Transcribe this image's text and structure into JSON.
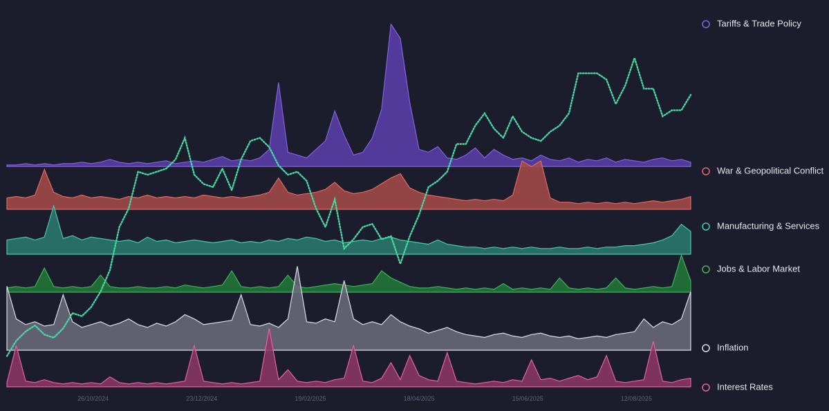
{
  "chart_data": {
    "type": "ridgeline",
    "x": [
      "10/09/2024",
      "15/09/2024",
      "20/09/2024",
      "25/09/2024",
      "30/09/2024",
      "05/10/2024",
      "10/10/2024",
      "15/10/2024",
      "20/10/2024",
      "25/10/2024",
      "30/10/2024",
      "04/11/2024",
      "09/11/2024",
      "14/11/2024",
      "19/11/2024",
      "24/11/2024",
      "29/11/2024",
      "04/12/2024",
      "09/12/2024",
      "14/12/2024",
      "19/12/2024",
      "24/12/2024",
      "29/12/2024",
      "03/01/2025",
      "08/01/2025",
      "13/01/2025",
      "18/01/2025",
      "23/01/2025",
      "28/01/2025",
      "02/02/2025",
      "07/02/2025",
      "12/02/2025",
      "17/02/2025",
      "22/02/2025",
      "27/02/2025",
      "04/03/2025",
      "09/03/2025",
      "14/03/2025",
      "19/03/2025",
      "24/03/2025",
      "29/03/2025",
      "03/04/2025",
      "08/04/2025",
      "13/04/2025",
      "18/04/2025",
      "23/04/2025",
      "28/04/2025",
      "03/05/2025",
      "08/05/2025",
      "13/05/2025",
      "18/05/2025",
      "23/05/2025",
      "28/05/2025",
      "02/06/2025",
      "07/06/2025",
      "12/06/2025",
      "17/06/2025",
      "22/06/2025",
      "27/06/2025",
      "02/07/2025",
      "07/07/2025",
      "12/07/2025",
      "17/07/2025",
      "22/07/2025",
      "27/07/2025",
      "01/08/2025",
      "06/08/2025",
      "11/08/2025",
      "16/08/2025",
      "21/08/2025",
      "26/08/2025",
      "31/08/2025",
      "05/09/2025",
      "10/09/2025"
    ],
    "xticks": [
      "26/10/2024",
      "23/12/2024",
      "19/02/2025",
      "18/04/2025",
      "15/06/2025",
      "12/08/2025"
    ],
    "series": [
      {
        "name": "Tariffs & Trade Policy",
        "color": "#8064dc",
        "values": [
          1,
          1,
          2,
          1,
          2,
          1,
          2,
          2,
          3,
          2,
          3,
          5,
          3,
          2,
          3,
          2,
          3,
          4,
          2,
          3,
          4,
          3,
          5,
          7,
          4,
          5,
          4,
          6,
          12,
          59,
          10,
          8,
          6,
          12,
          18,
          39,
          22,
          8,
          10,
          20,
          40,
          100,
          90,
          45,
          12,
          10,
          14,
          6,
          5,
          8,
          13,
          6,
          12,
          8,
          5,
          6,
          4,
          8,
          5,
          4,
          6,
          3,
          5,
          4,
          6,
          3,
          5,
          4,
          3,
          5,
          6,
          4,
          5,
          3
        ]
      },
      {
        "name": "War & Geopolitical Conflict",
        "color": "#e06a62",
        "values": [
          8,
          9,
          8,
          10,
          28,
          12,
          9,
          8,
          10,
          8,
          9,
          8,
          7,
          9,
          8,
          10,
          8,
          9,
          8,
          9,
          8,
          10,
          9,
          8,
          9,
          8,
          9,
          10,
          12,
          22,
          12,
          10,
          11,
          12,
          14,
          19,
          13,
          11,
          12,
          14,
          18,
          22,
          25,
          15,
          12,
          10,
          9,
          8,
          7,
          6,
          7,
          6,
          7,
          6,
          10,
          34,
          30,
          34,
          8,
          5,
          5,
          4,
          5,
          4,
          5,
          4,
          5,
          4,
          5,
          6,
          5,
          6,
          7,
          9
        ]
      },
      {
        "name": "Manufacturing & Services",
        "color": "#48c9aa",
        "values": [
          10,
          11,
          12,
          10,
          12,
          34,
          11,
          13,
          10,
          12,
          11,
          10,
          9,
          10,
          8,
          12,
          9,
          10,
          8,
          9,
          10,
          9,
          8,
          9,
          10,
          8,
          9,
          8,
          10,
          9,
          11,
          10,
          12,
          11,
          9,
          10,
          8,
          9,
          10,
          9,
          11,
          12,
          10,
          9,
          8,
          7,
          10,
          7,
          6,
          5,
          5,
          4,
          5,
          4,
          5,
          4,
          5,
          4,
          4,
          5,
          4,
          4,
          5,
          4,
          5,
          5,
          6,
          6,
          7,
          8,
          10,
          13,
          21,
          16
        ]
      },
      {
        "name": "Jobs & Labor Market",
        "color": "#3fb35a",
        "values": [
          3,
          4,
          3,
          4,
          17,
          4,
          3,
          4,
          3,
          4,
          12,
          4,
          3,
          3,
          4,
          3,
          3,
          4,
          3,
          5,
          4,
          3,
          4,
          5,
          15,
          4,
          3,
          4,
          3,
          4,
          12,
          4,
          3,
          4,
          5,
          6,
          5,
          4,
          5,
          6,
          15,
          10,
          7,
          4,
          3,
          3,
          4,
          3,
          2,
          3,
          2,
          3,
          2,
          6,
          2,
          3,
          2,
          3,
          2,
          10,
          3,
          2,
          3,
          2,
          3,
          10,
          3,
          2,
          3,
          4,
          3,
          4,
          26,
          8
        ]
      },
      {
        "name": "Inflation",
        "color": "#dcdce4",
        "values": [
          45,
          22,
          18,
          20,
          17,
          18,
          39,
          20,
          16,
          18,
          20,
          17,
          19,
          22,
          18,
          16,
          19,
          17,
          20,
          25,
          22,
          18,
          19,
          20,
          21,
          39,
          18,
          17,
          19,
          16,
          22,
          59,
          20,
          19,
          22,
          20,
          49,
          22,
          18,
          20,
          18,
          25,
          20,
          17,
          15,
          12,
          14,
          16,
          13,
          11,
          10,
          9,
          11,
          12,
          10,
          9,
          11,
          12,
          10,
          9,
          10,
          8,
          9,
          10,
          9,
          11,
          12,
          13,
          22,
          16,
          20,
          18,
          22,
          41
        ]
      },
      {
        "name": "Interest Rates",
        "color": "#e462a4",
        "values": [
          3,
          29,
          4,
          3,
          5,
          3,
          2,
          3,
          2,
          3,
          2,
          7,
          3,
          2,
          3,
          2,
          3,
          2,
          3,
          4,
          29,
          4,
          3,
          2,
          3,
          2,
          3,
          4,
          41,
          5,
          12,
          4,
          3,
          4,
          3,
          5,
          6,
          29,
          4,
          3,
          6,
          17,
          5,
          22,
          8,
          5,
          4,
          24,
          4,
          3,
          2,
          3,
          4,
          3,
          5,
          4,
          19,
          5,
          6,
          4,
          6,
          8,
          5,
          7,
          22,
          4,
          3,
          4,
          5,
          32,
          4,
          3,
          5,
          6
        ]
      },
      {
        "color": "#46d8a6",
        "line": "dotted",
        "values": [
          1,
          6,
          9,
          11,
          8,
          7,
          10,
          15,
          14,
          17,
          22,
          29,
          43,
          49,
          61,
          60,
          61,
          62,
          65,
          72,
          60,
          57,
          56,
          62,
          55,
          65,
          71,
          72,
          69,
          63,
          60,
          61,
          58,
          49,
          43,
          52,
          36,
          39,
          43,
          44,
          39,
          40,
          31,
          40,
          47,
          56,
          58,
          61,
          70,
          70,
          76,
          80,
          75,
          72,
          79,
          74,
          72,
          71,
          74,
          76,
          80,
          93,
          93,
          93,
          91,
          83,
          89,
          98,
          88,
          88,
          79,
          81,
          81,
          86
        ]
      }
    ]
  }
}
